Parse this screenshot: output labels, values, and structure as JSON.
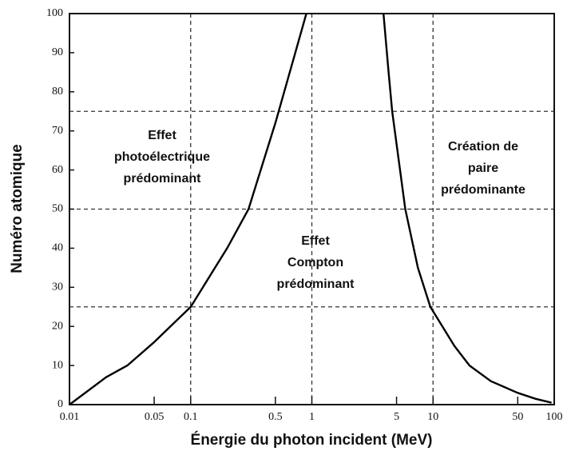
{
  "chart_data": {
    "type": "line",
    "xlabel": "Énergie du photon incident (MeV)",
    "ylabel": "Numéro atomique",
    "xscale": "log",
    "xlim": [
      0.01,
      100
    ],
    "ylim": [
      0,
      100
    ],
    "xticks": [
      0.01,
      0.05,
      0.1,
      0.5,
      1,
      5,
      10,
      50,
      100
    ],
    "yticks": [
      0,
      10,
      20,
      30,
      40,
      50,
      60,
      70,
      80,
      90,
      100
    ],
    "reference_lines": {
      "x": [
        0.1,
        1,
        10
      ],
      "y": [
        25,
        50,
        75
      ]
    },
    "series": [
      {
        "color": "#000000",
        "x": [
          0.01,
          0.02,
          0.03,
          0.05,
          0.1,
          0.2,
          0.3,
          0.5,
          0.7,
          0.9
        ],
        "values": [
          0,
          7,
          10,
          16,
          25,
          40,
          50,
          72,
          88,
          100
        ]
      },
      {
        "color": "#000000",
        "x": [
          3.9,
          4.3,
          4.6,
          5.9,
          7.5,
          9.5,
          15,
          20,
          30,
          50,
          70,
          95
        ],
        "values": [
          100,
          85,
          75,
          50,
          35,
          25,
          15,
          10,
          6,
          3,
          1.5,
          0.5
        ]
      }
    ],
    "annotations": [
      {
        "text": [
          "Effet",
          "photoélectrique",
          "prédominant"
        ]
      },
      {
        "text": [
          "Effet",
          "Compton",
          "prédominant"
        ]
      },
      {
        "text": [
          "Création de",
          "paire",
          "prédominante"
        ]
      }
    ]
  }
}
